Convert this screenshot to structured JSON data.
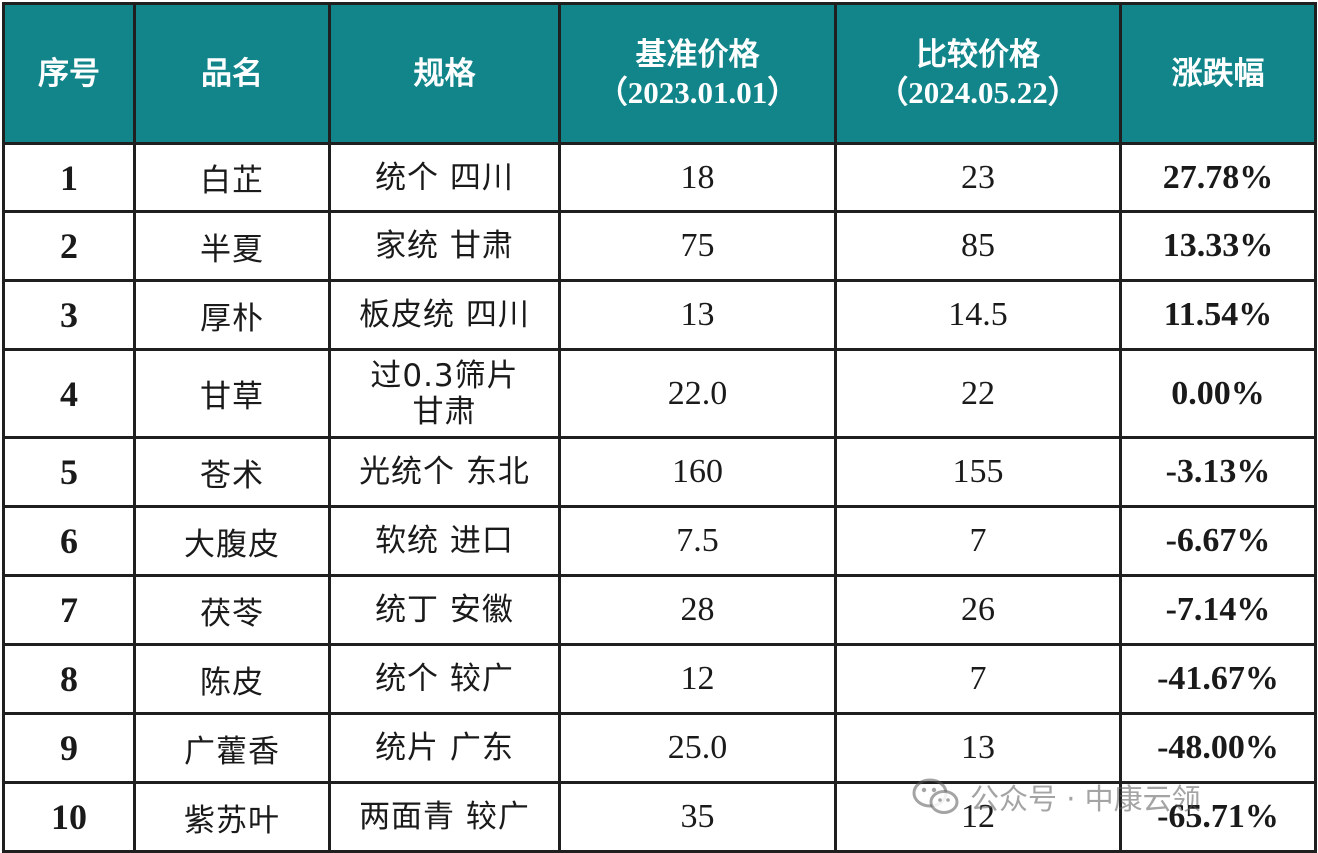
{
  "table": {
    "headers": {
      "index": "序号",
      "name": "品名",
      "spec": "规格",
      "base_price": "基准价格",
      "base_date": "（2023.01.01）",
      "compare_price": "比较价格",
      "compare_date": "（2024.05.22）",
      "change": "涨跌幅"
    },
    "rows": [
      {
        "index": "1",
        "name": "白芷",
        "spec": "统个 四川",
        "base": "18",
        "compare": "23",
        "change": "27.78%",
        "trend": "up"
      },
      {
        "index": "2",
        "name": "半夏",
        "spec": "家统 甘肃",
        "base": "75",
        "compare": "85",
        "change": "13.33%",
        "trend": "up"
      },
      {
        "index": "3",
        "name": "厚朴",
        "spec": "板皮统 四川",
        "base": "13",
        "compare": "14.5",
        "change": "11.54%",
        "trend": "up"
      },
      {
        "index": "4",
        "name": "甘草",
        "spec": "过0.3筛片\n甘肃",
        "base": "22.0",
        "compare": "22",
        "change": "0.00%",
        "trend": "flat"
      },
      {
        "index": "5",
        "name": "苍术",
        "spec": "光统个 东北",
        "base": "160",
        "compare": "155",
        "change": "-3.13%",
        "trend": "down"
      },
      {
        "index": "6",
        "name": "大腹皮",
        "spec": "软统 进口",
        "base": "7.5",
        "compare": "7",
        "change": "-6.67%",
        "trend": "down"
      },
      {
        "index": "7",
        "name": "茯苓",
        "spec": "统丁 安徽",
        "base": "28",
        "compare": "26",
        "change": "-7.14%",
        "trend": "down"
      },
      {
        "index": "8",
        "name": "陈皮",
        "spec": "统个 较广",
        "base": "12",
        "compare": "7",
        "change": "-41.67%",
        "trend": "down"
      },
      {
        "index": "9",
        "name": "广藿香",
        "spec": "统片 广东",
        "base": "25.0",
        "compare": "13",
        "change": "-48.00%",
        "trend": "down"
      },
      {
        "index": "10",
        "name": "紫苏叶",
        "spec": "两面青 较广",
        "base": "35",
        "compare": "12",
        "change": "-65.71%",
        "trend": "down"
      }
    ]
  },
  "colors": {
    "header_bg": "#11858a",
    "header_text": "#ffffff",
    "rise": "#e8191f",
    "fall": "#1aa64e",
    "flat": "#111111"
  },
  "watermark": {
    "icon": "wechat-icon",
    "text": "公众号 · 中康云领"
  }
}
